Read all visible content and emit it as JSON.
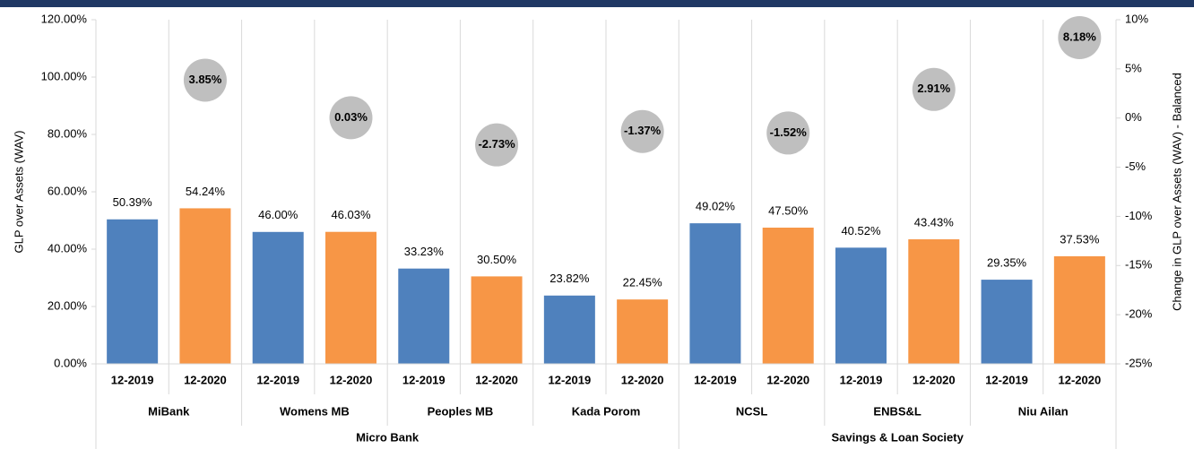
{
  "chart_data": {
    "type": "bar",
    "y_label": "GLP over Assets (WAV)",
    "y2_label": "Change in GLP over Assets (WAV) - Balanced",
    "groups": [
      {
        "name": "Micro Bank",
        "institutions": [
          {
            "name": "MiBank",
            "periods": [
              "12-2019",
              "12-2020"
            ]
          },
          {
            "name": "Womens MB",
            "periods": [
              "12-2019",
              "12-2020"
            ]
          },
          {
            "name": "Peoples MB",
            "periods": [
              "12-2019",
              "12-2020"
            ]
          },
          {
            "name": "Kada Porom",
            "periods": [
              "12-2019",
              "12-2020"
            ]
          }
        ]
      },
      {
        "name": "Savings & Loan Society",
        "institutions": [
          {
            "name": "NCSL",
            "periods": [
              "12-2019",
              "12-2020"
            ]
          },
          {
            "name": "ENBS&L",
            "periods": [
              "12-2019",
              "12-2020"
            ]
          },
          {
            "name": "Niu Ailan",
            "periods": [
              "12-2019",
              "12-2020"
            ]
          }
        ]
      }
    ],
    "series": [
      {
        "color": "#4f81bd",
        "values": [
          50.39,
          46.0,
          33.23,
          23.82,
          49.02,
          40.52,
          29.35
        ],
        "value_labels": [
          "50.39%",
          "46.00%",
          "33.23%",
          "23.82%",
          "49.02%",
          "40.52%",
          "29.35%"
        ]
      },
      {
        "color": "#f79646",
        "values": [
          54.24,
          46.03,
          30.5,
          22.45,
          47.5,
          43.43,
          37.53
        ],
        "value_labels": [
          "54.24%",
          "46.03%",
          "30.50%",
          "22.45%",
          "47.50%",
          "43.43%",
          "37.53%"
        ]
      }
    ],
    "changes": {
      "axis": "y2",
      "color": "#bfbfbf",
      "values": [
        3.85,
        0.03,
        -2.73,
        -1.37,
        -1.52,
        2.91,
        8.18
      ],
      "value_labels": [
        "3.85%",
        "0.03%",
        "-2.73%",
        "-1.37%",
        "-1.52%",
        "2.91%",
        "8.18%"
      ]
    },
    "ylim": [
      0,
      120
    ],
    "yticks": [
      {
        "value": 0,
        "label": "0.00%"
      },
      {
        "value": 20,
        "label": "20.00%"
      },
      {
        "value": 40,
        "label": "40.00%"
      },
      {
        "value": 60,
        "label": "60.00%"
      },
      {
        "value": 80,
        "label": "80.00%"
      },
      {
        "value": 100,
        "label": "100.00%"
      },
      {
        "value": 120,
        "label": "120.00%"
      }
    ],
    "y2lim": [
      -25,
      10
    ],
    "y2ticks": [
      {
        "value": -25,
        "label": "-25%"
      },
      {
        "value": -20,
        "label": "-20%"
      },
      {
        "value": -15,
        "label": "-15%"
      },
      {
        "value": -10,
        "label": "-10%"
      },
      {
        "value": -5,
        "label": "-5%"
      },
      {
        "value": 0,
        "label": "0%"
      },
      {
        "value": 5,
        "label": "5%"
      },
      {
        "value": 10,
        "label": "10%"
      }
    ]
  }
}
